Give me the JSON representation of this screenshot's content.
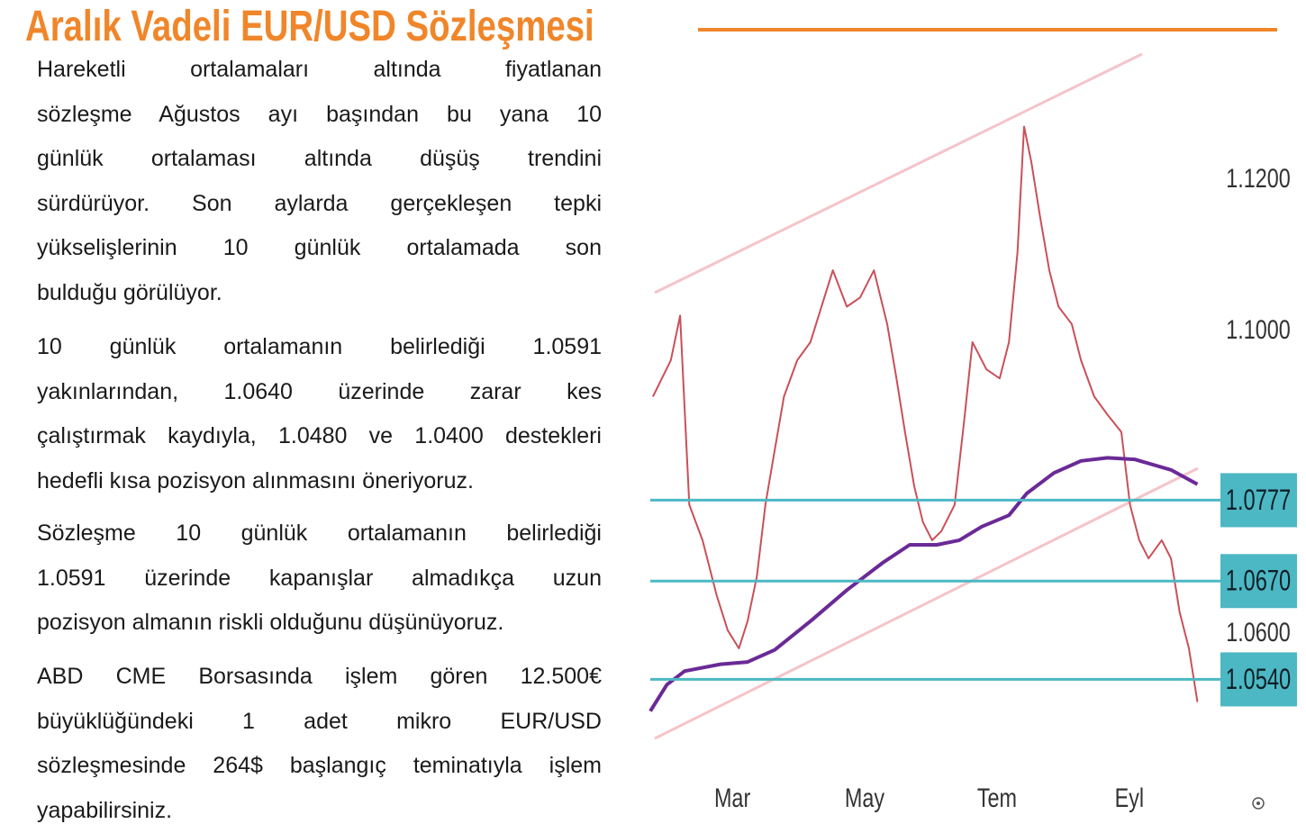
{
  "header": {
    "title": "Aralık Vadeli EUR/USD Sözleşmesi"
  },
  "paragraphs": [
    [
      "Hareketli ortalamaları altında fiyatlanan",
      "sözleşme Ağustos ayı başından bu yana 10",
      "günlük ortalaması altında düşüş trendini",
      "sürdürüyor. Son aylarda gerçekleşen tepki",
      "yükselişlerinin 10 günlük ortalamada son",
      "bulduğu görülüyor."
    ],
    [
      "10 günlük ortalamanın belirlediği 1.0591",
      "yakınlarından, 1.0640 üzerinde zarar kes",
      "çalıştırmak kaydıyla, 1.0480 ve 1.0400 destekleri",
      "hedefli kısa pozisyon alınmasını öneriyoruz."
    ],
    [
      "Sözleşme 10 günlük ortalamanın belirlediği",
      "1.0591 üzerinde kapanışlar almadıkça uzun",
      "pozisyon almanın riskli olduğunu düşünüyoruz."
    ],
    [
      "ABD CME Borsasında işlem gören 12.500€",
      "büyüklüğündeki 1 adet mikro EUR/USD",
      "sözleşmesinde 264$ başlangıç teminatıyla işlem",
      "yapabilirsiniz."
    ]
  ],
  "chart_data": {
    "type": "line",
    "xlim": [
      0.76,
      9.2
    ],
    "ylim": [
      1.045,
      1.1367
    ],
    "xticks": [
      {
        "value": 2,
        "label": "Mar"
      },
      {
        "value": 4,
        "label": "May"
      },
      {
        "value": 6,
        "label": "Tem"
      },
      {
        "value": 8,
        "label": "Eyl"
      }
    ],
    "yticks": [
      {
        "value": 1.12,
        "label": "1.1200"
      },
      {
        "value": 1.1,
        "label": "1.1000"
      },
      {
        "value": 1.06,
        "label": "1.0600"
      }
    ],
    "levels": [
      1.0777,
      {
        "value": 1.067,
        "label": "1.0670"
      },
      {
        "value": 1.054,
        "label": "1.0540"
      }
    ],
    "level_color": "#4cb8c4",
    "series": [
      {
        "color": "#c9505a",
        "x": [
          0.8,
          1.07,
          1.21,
          1.35,
          1.55,
          1.76,
          1.93,
          2.1,
          2.23,
          2.37,
          2.5,
          2.64,
          2.78,
          2.98,
          3.18,
          3.39,
          3.52,
          3.73,
          3.93,
          4.14,
          4.34,
          4.48,
          4.61,
          4.75,
          4.88,
          5.02,
          5.16,
          5.36,
          5.5,
          5.63,
          5.84,
          6.04,
          6.18,
          6.31,
          6.41,
          6.52,
          6.65,
          6.79,
          6.93,
          7.13,
          7.27,
          7.47,
          7.67,
          7.88,
          8.01,
          8.15,
          8.29,
          8.49,
          8.63,
          8.76,
          8.9,
          9.03
        ],
        "values": [
          1.0914,
          1.0962,
          1.1021,
          1.0771,
          1.0724,
          1.0652,
          1.0605,
          1.0581,
          1.0617,
          1.0676,
          1.0771,
          1.0843,
          1.0914,
          1.0962,
          1.0986,
          1.1045,
          1.1081,
          1.1033,
          1.1045,
          1.1081,
          1.101,
          1.0938,
          1.0867,
          1.0795,
          1.0748,
          1.0724,
          1.0736,
          1.0771,
          1.0879,
          1.0986,
          1.095,
          1.0938,
          1.0986,
          1.1105,
          1.1271,
          1.1224,
          1.1152,
          1.1081,
          1.1033,
          1.101,
          1.0962,
          1.0914,
          1.089,
          1.0867,
          1.0771,
          1.0724,
          1.07,
          1.0724,
          1.07,
          1.0629,
          1.0581,
          1.051
        ]
      },
      {
        "color": "#6a2a96",
        "x": [
          0.76,
          1.01,
          1.28,
          1.82,
          2.23,
          2.64,
          3.18,
          3.73,
          4.27,
          4.68,
          5.09,
          5.43,
          5.77,
          6.18,
          6.45,
          6.86,
          7.27,
          7.67,
          8.08,
          8.63,
          9.03
        ],
        "values": [
          1.0498,
          1.0533,
          1.0551,
          1.056,
          1.0563,
          1.0579,
          1.0617,
          1.0658,
          1.0694,
          1.0718,
          1.0718,
          1.0724,
          1.0742,
          1.0757,
          1.0786,
          1.0813,
          1.0829,
          1.0833,
          1.0831,
          1.0817,
          1.0798
        ]
      }
    ]
  }
}
